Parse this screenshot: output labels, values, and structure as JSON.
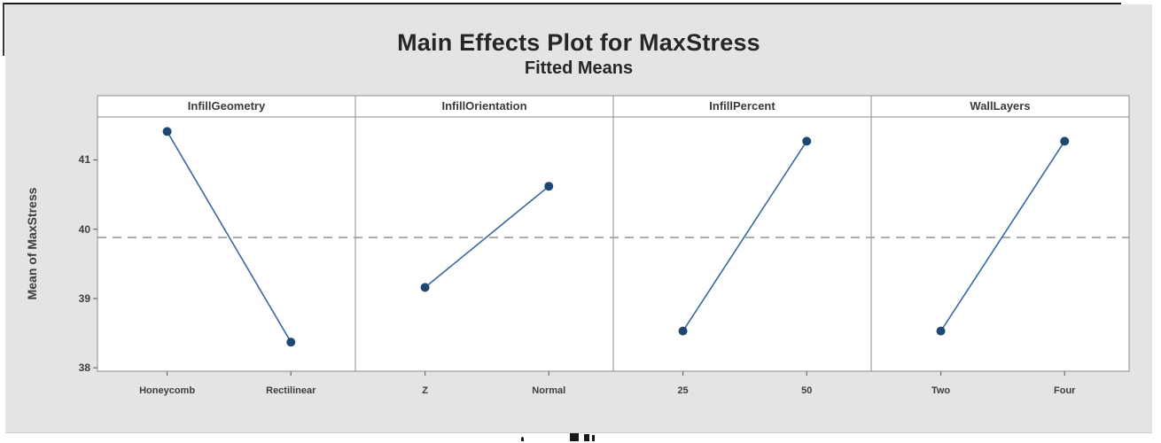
{
  "chart_data": {
    "type": "line",
    "title": "Main Effects Plot for MaxStress",
    "subtitle": "Fitted Means",
    "ylabel": "Mean of MaxStress",
    "yticks": [
      41,
      40,
      39,
      38
    ],
    "ylim": [
      37.95,
      41.62
    ],
    "reference_line_value": 39.88,
    "legend_position": "none",
    "grid": false,
    "panels": [
      {
        "label": "InfillGeometry",
        "categories": [
          "Honeycomb",
          "Rectilinear"
        ],
        "values": [
          41.41,
          38.37
        ]
      },
      {
        "label": "InfillOrientation",
        "categories": [
          "Z",
          "Normal"
        ],
        "values": [
          39.16,
          40.62
        ]
      },
      {
        "label": "InfillPercent",
        "categories": [
          "25",
          "50"
        ],
        "values": [
          38.53,
          41.27
        ]
      },
      {
        "label": "WallLayers",
        "categories": [
          "Two",
          "Four"
        ],
        "values": [
          38.53,
          41.27
        ]
      }
    ],
    "colors": {
      "series_line": "#38689e",
      "marker": "#1e4872",
      "reference_line": "#9b9b9b",
      "panel_border": "#8c8c8c",
      "canvas_background": "#e4e4e4",
      "plot_background": "#ffffff",
      "text": "#3d3d3d"
    }
  }
}
